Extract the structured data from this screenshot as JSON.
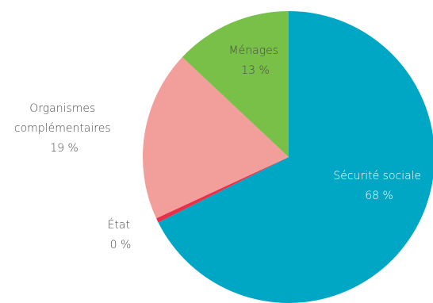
{
  "chart_data": {
    "type": "pie",
    "start_angle_deg": 0,
    "direction": "clockwise",
    "slices": [
      {
        "label": "Sécurité sociale",
        "value_label": "68 %",
        "value": 67.6,
        "color": "#00a7c4"
      },
      {
        "label": "État",
        "value_label": "0 %",
        "value": 0.5,
        "color": "#e8304a"
      },
      {
        "label": "Organismes complémentaires",
        "label_lines": [
          "Organismes",
          "complémentaires"
        ],
        "value_label": "19 %",
        "value": 18.9,
        "color": "#f29e9a"
      },
      {
        "label": "Ménages",
        "value_label": "13 %",
        "value": 13.0,
        "color": "#78c047"
      }
    ]
  }
}
